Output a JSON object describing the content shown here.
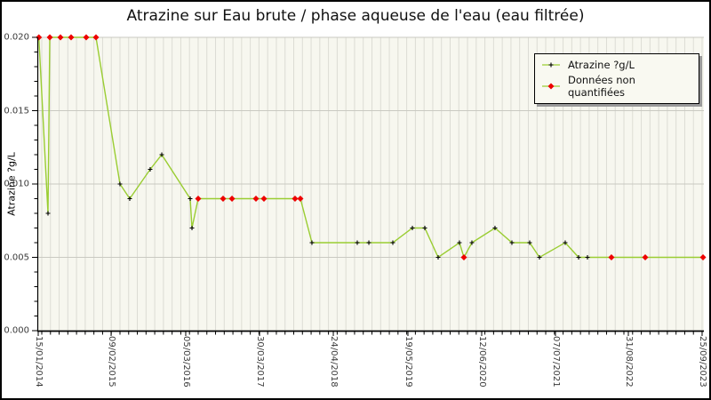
{
  "title": "Atrazine sur Eau brute / phase aqueuse de l'eau (eau filtrée)",
  "y_axis": {
    "label": "Atrazine ?g/L",
    "ticks": [
      {
        "value": 0.02,
        "label": "0.020"
      },
      {
        "value": 0.015,
        "label": "0.015"
      },
      {
        "value": 0.01,
        "label": "0.010"
      },
      {
        "value": 0.005,
        "label": "0.005"
      },
      {
        "value": 0.0,
        "label": "0.000"
      }
    ],
    "minor_step": 0.001,
    "min": 0,
    "max": 0.02
  },
  "x_axis": {
    "ticks": [
      {
        "pos": 0.0,
        "label": "15/01/2014"
      },
      {
        "pos": 0.1095,
        "label": "09/02/2015"
      },
      {
        "pos": 0.2216,
        "label": "05/03/2016"
      },
      {
        "pos": 0.3325,
        "label": "30/03/2017"
      },
      {
        "pos": 0.4433,
        "label": "24/04/2018"
      },
      {
        "pos": 0.5554,
        "label": "19/05/2019"
      },
      {
        "pos": 0.6662,
        "label": "12/06/2020"
      },
      {
        "pos": 0.777,
        "label": "07/07/2021"
      },
      {
        "pos": 0.8865,
        "label": "31/08/2022"
      },
      {
        "pos": 0.9973,
        "label": "25/09/2023"
      }
    ],
    "minor_tick_count": 77
  },
  "legend": {
    "items": [
      {
        "label": "Atrazine ?g/L",
        "marker": "black-plus"
      },
      {
        "label": "Données non quantifiées",
        "marker": "red-diamond"
      }
    ]
  },
  "colors": {
    "line": "#9acd32",
    "marker": "#000000",
    "non_quantified": "#ee0000",
    "plot_bg": "#f7f7ef",
    "stripe": "#dcdcd4",
    "grid": "#c9c9c1",
    "axis": "#000000"
  },
  "chart_data": {
    "type": "line",
    "title": "Atrazine sur Eau brute / phase aqueuse de l'eau (eau filtrée)",
    "ylabel": "Atrazine ?g/L",
    "ylim": [
      0,
      0.02
    ],
    "grid": "horizontal-major + vertical-sample-stripes",
    "legend_position": "top-right",
    "series_note": "x = fractional position along time axis (15/01/2014 .. 25/09/2023); nq = donnée non quantifiée (red diamond)",
    "points": [
      {
        "x": 0.001,
        "y": 0.02,
        "nq": true
      },
      {
        "x": 0.0147,
        "y": 0.008,
        "nq": false
      },
      {
        "x": 0.0174,
        "y": 0.02,
        "nq": true
      },
      {
        "x": 0.0334,
        "y": 0.02,
        "nq": true
      },
      {
        "x": 0.0494,
        "y": 0.02,
        "nq": true
      },
      {
        "x": 0.0721,
        "y": 0.02,
        "nq": true
      },
      {
        "x": 0.0868,
        "y": 0.02,
        "nq": true
      },
      {
        "x": 0.1228,
        "y": 0.01,
        "nq": false
      },
      {
        "x": 0.1375,
        "y": 0.009,
        "nq": false
      },
      {
        "x": 0.1682,
        "y": 0.011,
        "nq": false
      },
      {
        "x": 0.1856,
        "y": 0.012,
        "nq": false
      },
      {
        "x": 0.2283,
        "y": 0.009,
        "nq": false
      },
      {
        "x": 0.231,
        "y": 0.007,
        "nq": false
      },
      {
        "x": 0.2403,
        "y": 0.009,
        "nq": true
      },
      {
        "x": 0.2777,
        "y": 0.009,
        "nq": true
      },
      {
        "x": 0.2911,
        "y": 0.009,
        "nq": true
      },
      {
        "x": 0.3271,
        "y": 0.009,
        "nq": true
      },
      {
        "x": 0.3391,
        "y": 0.009,
        "nq": true
      },
      {
        "x": 0.3858,
        "y": 0.009,
        "nq": true
      },
      {
        "x": 0.3938,
        "y": 0.009,
        "nq": true
      },
      {
        "x": 0.4112,
        "y": 0.006,
        "nq": false
      },
      {
        "x": 0.4793,
        "y": 0.006,
        "nq": false
      },
      {
        "x": 0.4967,
        "y": 0.006,
        "nq": false
      },
      {
        "x": 0.5327,
        "y": 0.006,
        "nq": false
      },
      {
        "x": 0.5621,
        "y": 0.007,
        "nq": false
      },
      {
        "x": 0.5808,
        "y": 0.007,
        "nq": false
      },
      {
        "x": 0.6008,
        "y": 0.005,
        "nq": false
      },
      {
        "x": 0.6328,
        "y": 0.006,
        "nq": false
      },
      {
        "x": 0.6395,
        "y": 0.005,
        "nq": true
      },
      {
        "x": 0.6515,
        "y": 0.006,
        "nq": false
      },
      {
        "x": 0.6862,
        "y": 0.007,
        "nq": false
      },
      {
        "x": 0.7116,
        "y": 0.006,
        "nq": false
      },
      {
        "x": 0.7383,
        "y": 0.006,
        "nq": false
      },
      {
        "x": 0.753,
        "y": 0.005,
        "nq": false
      },
      {
        "x": 0.7917,
        "y": 0.006,
        "nq": false
      },
      {
        "x": 0.8118,
        "y": 0.005,
        "nq": false
      },
      {
        "x": 0.8251,
        "y": 0.005,
        "nq": false
      },
      {
        "x": 0.8611,
        "y": 0.005,
        "nq": true
      },
      {
        "x": 0.9119,
        "y": 0.005,
        "nq": true
      },
      {
        "x": 0.9987,
        "y": 0.005,
        "nq": true
      }
    ]
  }
}
